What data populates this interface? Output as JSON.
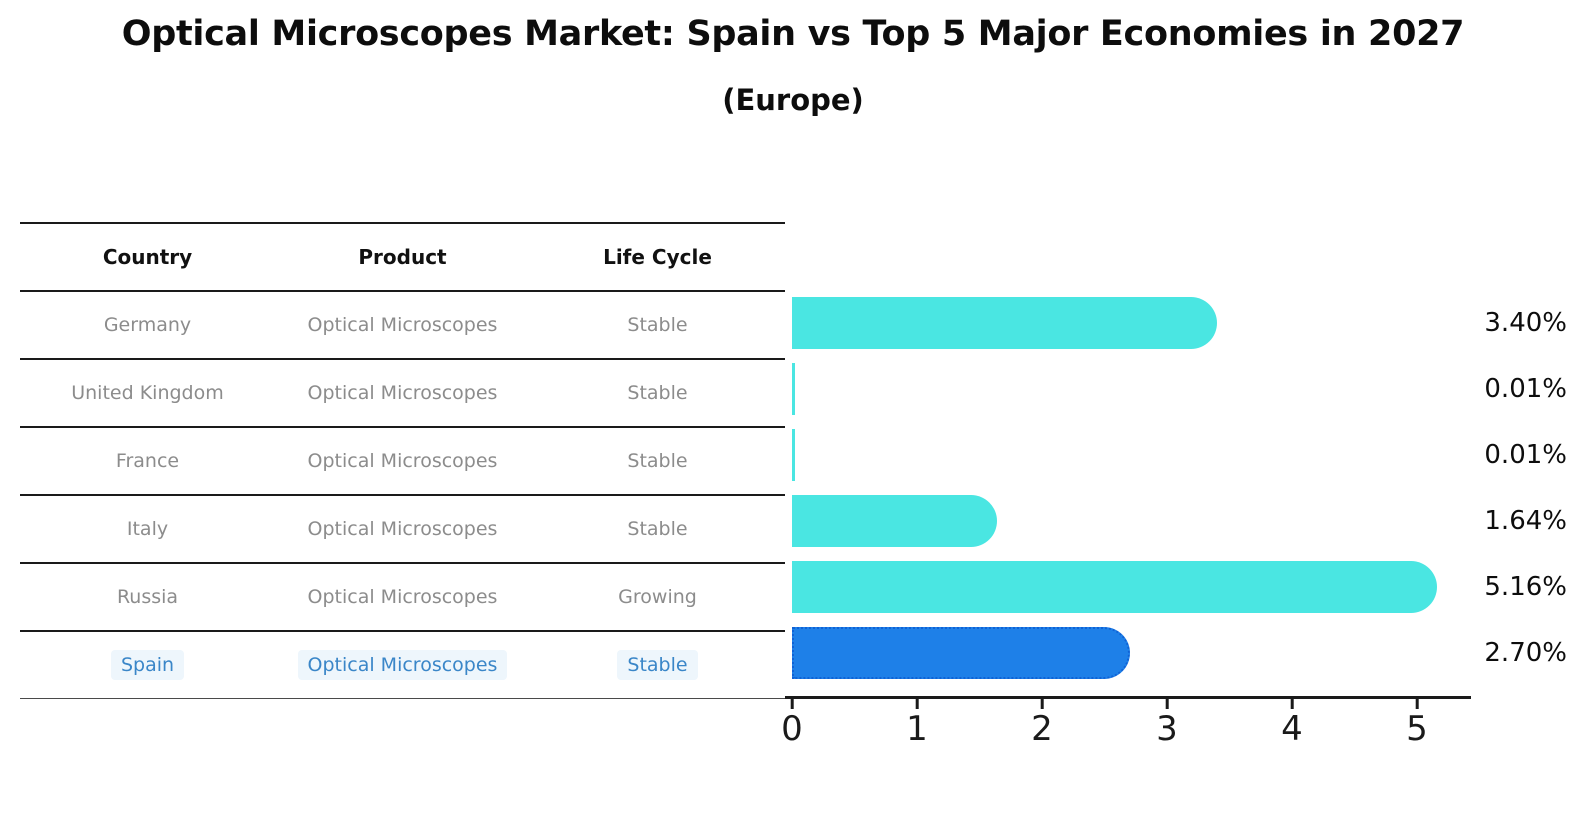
{
  "title": "Optical Microscopes Market: Spain vs Top 5 Major Economies in 2027",
  "subtitle": "(Europe)",
  "table": {
    "headers": [
      "Country",
      "Product",
      "Life Cycle"
    ],
    "rows": [
      {
        "country": "Germany",
        "product": "Optical Microscopes",
        "life_cycle": "Stable",
        "highlighted": false
      },
      {
        "country": "United Kingdom",
        "product": "Optical Microscopes",
        "life_cycle": "Stable",
        "highlighted": false
      },
      {
        "country": "France",
        "product": "Optical Microscopes",
        "life_cycle": "Stable",
        "highlighted": false
      },
      {
        "country": "Italy",
        "product": "Optical Microscopes",
        "life_cycle": "Stable",
        "highlighted": false
      },
      {
        "country": "Russia",
        "product": "Optical Microscopes",
        "life_cycle": "Growing",
        "highlighted": false
      },
      {
        "country": "Spain",
        "product": "Optical Microscopes",
        "life_cycle": "Stable",
        "highlighted": true
      }
    ]
  },
  "chart_data": {
    "type": "bar",
    "orientation": "horizontal",
    "title": "Optical Microscopes Market: Spain vs Top 5 Major Economies in 2027 (Europe)",
    "categories": [
      "Germany",
      "United Kingdom",
      "France",
      "Italy",
      "Russia",
      "Spain"
    ],
    "values": [
      3.4,
      0.01,
      0.01,
      1.64,
      5.16,
      2.7
    ],
    "value_labels": [
      "3.40%",
      "0.01%",
      "0.01%",
      "1.64%",
      "5.16%",
      "2.70%"
    ],
    "x_ticks": [
      "0",
      "1",
      "2",
      "3",
      "4",
      "5"
    ],
    "xlim": [
      0,
      5.448
    ],
    "grid": false,
    "legend": "none",
    "highlight_category": "Spain",
    "highlight_index": 5
  },
  "colors": {
    "bar": "#4AE6E2",
    "highlight_bar": "#1E80E8",
    "highlight_border": "#0F62D6",
    "highlight_text": "#3A86C8",
    "highlight_cell_bg": "#EEF6FC",
    "table_text": "#8C8C8C",
    "header_text": "#111111",
    "axis": "#1A1A1A",
    "value_label": "#0D0D0D"
  }
}
